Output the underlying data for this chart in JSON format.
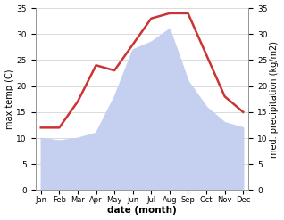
{
  "months": [
    "Jan",
    "Feb",
    "Mar",
    "Apr",
    "May",
    "Jun",
    "Jul",
    "Aug",
    "Sep",
    "Oct",
    "Nov",
    "Dec"
  ],
  "temp": [
    12,
    12,
    17,
    24,
    23,
    28,
    33,
    34,
    34,
    26,
    18,
    15
  ],
  "precip": [
    10,
    9.5,
    10,
    11,
    18,
    27,
    28.5,
    31,
    21,
    16,
    13,
    12
  ],
  "temp_color": "#cc3333",
  "precip_fill_color": "#c5cff0",
  "ylim": [
    0,
    35
  ],
  "xlabel": "date (month)",
  "ylabel_left": "max temp (C)",
  "ylabel_right": "med. precipitation (kg/m2)",
  "bg_color": "#ffffff",
  "grid_color": "#cccccc",
  "temp_linewidth": 1.8,
  "yticks": [
    0,
    5,
    10,
    15,
    20,
    25,
    30,
    35
  ]
}
